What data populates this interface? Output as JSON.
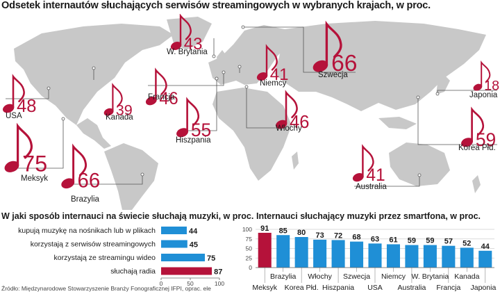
{
  "title": "Odsetek internautów słuchających serwisów streamingowych w wybranych krajach, w proc.",
  "colors": {
    "accent": "#b5123a",
    "blue": "#1f8fd6",
    "land": "#c8c8c8",
    "line": "#555555"
  },
  "chart_data": [
    {
      "type": "map",
      "title": "Odsetek internautów słuchających serwisów streamingowych w wybranych krajach, w proc.",
      "countries": [
        {
          "name": "USA",
          "value": 48
        },
        {
          "name": "Kanada",
          "value": 39
        },
        {
          "name": "Meksyk",
          "value": 75
        },
        {
          "name": "Brazylia",
          "value": 66
        },
        {
          "name": "W. Brytania",
          "value": 43
        },
        {
          "name": "Francja",
          "value": 46
        },
        {
          "name": "Hiszpania",
          "value": 55
        },
        {
          "name": "Niemcy",
          "value": 41
        },
        {
          "name": "Włochy",
          "value": 46
        },
        {
          "name": "Szwecja",
          "value": 66
        },
        {
          "name": "Japonia",
          "value": 18
        },
        {
          "name": "Korea Płd.",
          "value": 59
        },
        {
          "name": "Australia",
          "value": 41
        }
      ]
    },
    {
      "type": "bar",
      "orientation": "horizontal",
      "title": "W jaki sposób internauci na świecie słuchają muzyki, w proc.",
      "categories": [
        "kupują muzykę na nośnikach lub w plikach",
        "korzystają z serwisów streamingowych",
        "korzystają ze streamingu wideo",
        "słuchają radia"
      ],
      "values": [
        44,
        45,
        75,
        87
      ],
      "xlim": [
        0,
        100
      ],
      "xticks": [
        "0",
        "50",
        "100"
      ]
    },
    {
      "type": "bar",
      "title": "Internauci słuchający muzyki przez smartfona, w proc.",
      "categories": [
        "Meksyk",
        "Brazylia",
        "Korea Płd.",
        "Włochy",
        "Hiszpania",
        "Szwecja",
        "USA",
        "Niemcy",
        "Australia",
        "W. Brytania",
        "Francja",
        "Kanada",
        "Japonia"
      ],
      "values": [
        91,
        85,
        80,
        73,
        72,
        68,
        63,
        61,
        59,
        59,
        57,
        52,
        44
      ],
      "ylim": [
        0,
        100
      ],
      "yticks": [
        "0",
        "25",
        "50",
        "75",
        "100"
      ],
      "grid": true
    }
  ],
  "source": "Źródło: Międzynarodowe Stowarzyszenie Branży Fonograficznej IFPI, oprac. ele"
}
